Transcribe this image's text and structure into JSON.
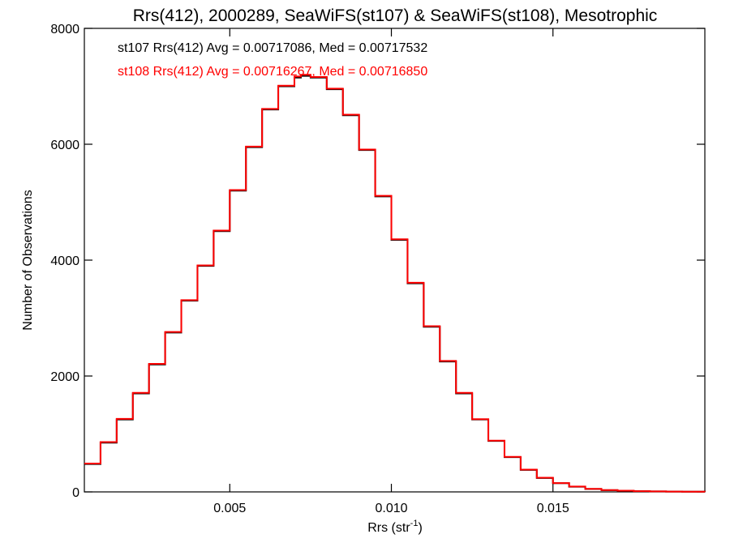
{
  "chart_data": {
    "type": "line",
    "step": true,
    "title": "Rrs(412), 2000289, SeaWiFS(st107) & SeaWiFS(st108), Mesotrophic",
    "xlabel": "Rrs (str",
    "xlabel_sup": "-1",
    "xlabel_end": ")",
    "ylabel": "Number of Observations",
    "xlim": [
      0.0005,
      0.0197
    ],
    "ylim": [
      0,
      8000
    ],
    "x_ticks": [
      0.005,
      0.01,
      0.015
    ],
    "x_tick_labels": [
      "0.005",
      "0.010",
      "0.015"
    ],
    "y_ticks": [
      0,
      2000,
      4000,
      6000,
      8000
    ],
    "y_tick_labels": [
      "0",
      "2000",
      "4000",
      "6000",
      "8000"
    ],
    "grid": false,
    "legend_position": "top-left",
    "colors": {
      "st107": "#000000",
      "st108": "#ff0000",
      "axes": "#000000",
      "background": "#ffffff"
    },
    "series": [
      {
        "name": "st107",
        "color": "#000000",
        "label": "st107 Rrs(412) Avg = 0.00717086, Med = 0.00717532",
        "x": [
          0.0005,
          0.001,
          0.0015,
          0.002,
          0.0025,
          0.003,
          0.0035,
          0.004,
          0.0045,
          0.005,
          0.0055,
          0.006,
          0.0065,
          0.007,
          0.0072,
          0.0075,
          0.008,
          0.0085,
          0.009,
          0.0095,
          0.01,
          0.0105,
          0.011,
          0.0115,
          0.012,
          0.0125,
          0.013,
          0.0135,
          0.014,
          0.0145,
          0.015,
          0.0155,
          0.016,
          0.0165,
          0.017,
          0.0175,
          0.018,
          0.0185,
          0.019,
          0.0197
        ],
        "y": [
          480,
          850,
          1250,
          1700,
          2200,
          2750,
          3300,
          3900,
          4500,
          5200,
          5950,
          6600,
          7000,
          7150,
          7180,
          7150,
          6950,
          6500,
          5900,
          5100,
          4350,
          3600,
          2850,
          2250,
          1700,
          1250,
          880,
          600,
          380,
          240,
          150,
          90,
          50,
          30,
          20,
          12,
          8,
          5,
          3,
          2
        ]
      },
      {
        "name": "st108",
        "color": "#ff0000",
        "label": "st108 Rrs(412) Avg = 0.00716267, Med = 0.00716850",
        "x": [
          0.0005,
          0.001,
          0.0015,
          0.002,
          0.0025,
          0.003,
          0.0035,
          0.004,
          0.0045,
          0.005,
          0.0055,
          0.006,
          0.0065,
          0.007,
          0.0072,
          0.0075,
          0.008,
          0.0085,
          0.009,
          0.0095,
          0.01,
          0.0105,
          0.011,
          0.0115,
          0.012,
          0.0125,
          0.013,
          0.0135,
          0.014,
          0.0145,
          0.015,
          0.0155,
          0.016,
          0.0165,
          0.017,
          0.0175,
          0.018,
          0.0185,
          0.019,
          0.0197
        ],
        "y": [
          490,
          860,
          1260,
          1710,
          2210,
          2760,
          3310,
          3910,
          4510,
          5210,
          5960,
          6610,
          7010,
          7170,
          7200,
          7160,
          6960,
          6510,
          5910,
          5110,
          4360,
          3610,
          2860,
          2260,
          1710,
          1255,
          885,
          605,
          385,
          245,
          152,
          92,
          52,
          31,
          21,
          13,
          8,
          5,
          3,
          2
        ]
      }
    ]
  }
}
